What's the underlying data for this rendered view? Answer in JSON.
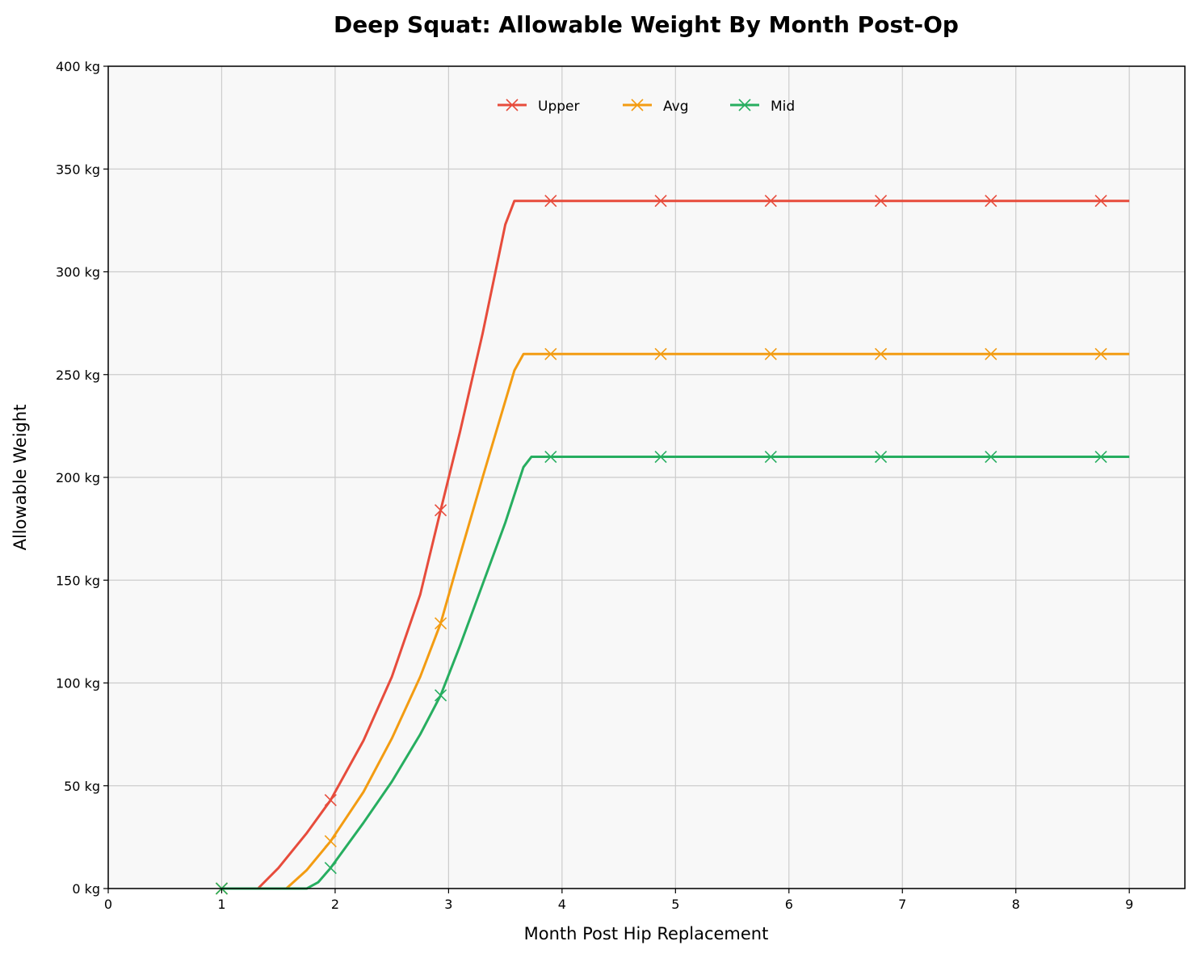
{
  "chart_data": {
    "type": "line",
    "title": "Deep Squat: Allowable Weight By Month Post-Op",
    "xlabel": "Month Post Hip Replacement",
    "ylabel": "Allowable Weight",
    "xlim": [
      0,
      9.49
    ],
    "ylim": [
      0,
      400
    ],
    "xticks": [
      0,
      1,
      2,
      3,
      4,
      5,
      6,
      7,
      8,
      9
    ],
    "xtick_labels": [
      "0",
      "1",
      "2",
      "3",
      "4",
      "5",
      "6",
      "7",
      "8",
      "9"
    ],
    "yticks": [
      0,
      50,
      100,
      150,
      200,
      250,
      300,
      350,
      400
    ],
    "ytick_labels": [
      "0 kg",
      "50 kg",
      "100 kg",
      "150 kg",
      "200 kg",
      "250 kg",
      "300 kg",
      "350 kg",
      "400 kg"
    ],
    "grid": true,
    "legend": "top-center",
    "background": "#f8f8f8",
    "marker_months": [
      1.0,
      1.96,
      2.93,
      3.9,
      4.87,
      5.84,
      6.81,
      7.78,
      8.75
    ],
    "series": [
      {
        "name": "Upper",
        "color": "#e74c3c",
        "curve": [
          [
            1,
            0
          ],
          [
            1.32,
            0
          ],
          [
            1.5,
            10
          ],
          [
            1.75,
            27
          ],
          [
            1.96,
            43
          ],
          [
            2.25,
            72
          ],
          [
            2.5,
            103
          ],
          [
            2.75,
            143
          ],
          [
            2.93,
            184
          ],
          [
            3.1,
            222
          ],
          [
            3.3,
            270
          ],
          [
            3.5,
            323
          ],
          [
            3.58,
            334.5
          ],
          [
            9,
            334.5
          ]
        ],
        "markers": [
          0,
          43,
          184,
          334.5,
          334.5,
          334.5,
          334.5,
          334.5,
          334.5
        ]
      },
      {
        "name": "Avg",
        "color": "#f39c12",
        "curve": [
          [
            1,
            0
          ],
          [
            1.57,
            0
          ],
          [
            1.75,
            9
          ],
          [
            1.96,
            23
          ],
          [
            2.25,
            47
          ],
          [
            2.5,
            73
          ],
          [
            2.75,
            103
          ],
          [
            2.93,
            129
          ],
          [
            3.1,
            162
          ],
          [
            3.3,
            200
          ],
          [
            3.58,
            252
          ],
          [
            3.66,
            260
          ],
          [
            9,
            260
          ]
        ],
        "markers": [
          0,
          23,
          129,
          260,
          260,
          260,
          260,
          260,
          260
        ]
      },
      {
        "name": "Mid",
        "color": "#27ae60",
        "curve": [
          [
            1,
            0
          ],
          [
            1.75,
            0
          ],
          [
            1.85,
            3
          ],
          [
            1.96,
            10
          ],
          [
            2.25,
            32
          ],
          [
            2.5,
            52
          ],
          [
            2.75,
            75
          ],
          [
            2.93,
            94
          ],
          [
            3.1,
            118
          ],
          [
            3.3,
            148
          ],
          [
            3.5,
            178
          ],
          [
            3.66,
            205
          ],
          [
            3.73,
            210
          ],
          [
            9,
            210
          ]
        ],
        "markers": [
          0,
          10,
          94,
          210,
          210,
          210,
          210,
          210,
          210
        ]
      }
    ]
  }
}
